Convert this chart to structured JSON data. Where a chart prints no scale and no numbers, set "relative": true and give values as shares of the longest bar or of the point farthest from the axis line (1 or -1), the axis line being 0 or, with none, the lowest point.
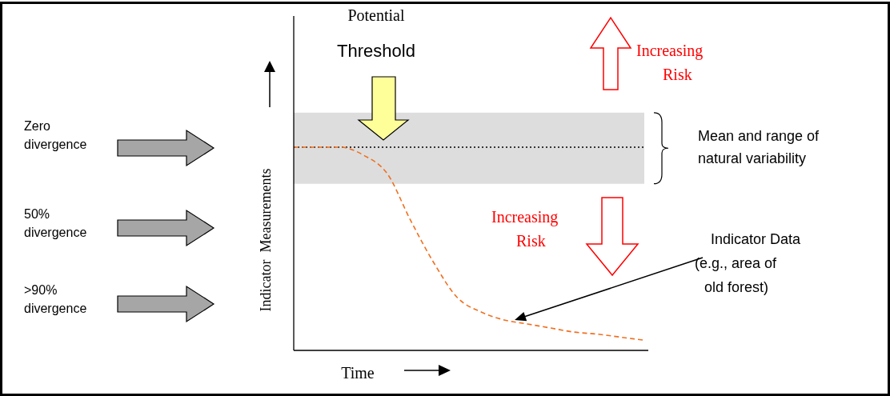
{
  "chart_data": {
    "type": "line",
    "relative": true,
    "tick_labels": false,
    "marker": "none",
    "line_style": "dashed",
    "categories": [
      null,
      null,
      null,
      null,
      null,
      null,
      null,
      null,
      null,
      null,
      null,
      null,
      null,
      null,
      null,
      null
    ],
    "series": [
      {
        "color": "#f07020",
        "values": [
          1,
          1,
          1,
          0.96,
          0.87,
          0.64,
          0.43,
          0.26,
          0.19,
          0.15,
          0.13,
          0.11,
          0.09,
          0.08,
          0.065,
          0.05
        ]
      }
    ],
    "xlabel": "Time",
    "ylabel": "Indicator  Measurements",
    "ref_lines": [
      {
        "axis": "y",
        "value": 1,
        "color": "#000000",
        "line_style": "dotted"
      }
    ],
    "bands": [
      {
        "axis": "y",
        "from": 0.82,
        "to": 1.17,
        "color": "#dddddd"
      }
    ],
    "annotations": [
      "Mean and range of\nnatural variability",
      "Potential\nThreshold",
      "Increasing\nRisk",
      "Increasing\nRisk",
      "Indicator Data\n(e.g., area of\nold forest)",
      "Zero\ndivergence",
      "50%\ndivergence",
      ">90%\ndivergence"
    ]
  }
}
